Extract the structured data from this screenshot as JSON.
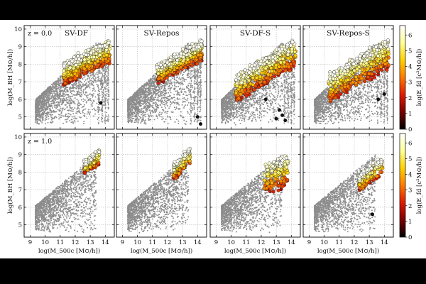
{
  "figure": {
    "background_band_color": "#000000",
    "panel_background": "#ffffff",
    "scatter_color": "#8c8c8c",
    "colormap": [
      "#000000",
      "#7a0000",
      "#e01b00",
      "#ff7a00",
      "#ffd200",
      "#ffff9a",
      "#ffffff"
    ]
  },
  "chart_data": [
    {
      "type": "scatter",
      "title": "SV-DF",
      "row": 0,
      "col": 0,
      "z_label": "z = 0.0",
      "xlim": [
        8.6,
        14.6
      ],
      "ylim": [
        4.3,
        10.2
      ],
      "xticks": [
        "9",
        "10",
        "11",
        "12",
        "13",
        "14"
      ],
      "yticks": [
        "5",
        "6",
        "7",
        "8",
        "9",
        "10"
      ],
      "ylabel": "log(M_BH [M⊙/h])",
      "xlabel": "",
      "grid": true,
      "colored": {
        "x_range": [
          11.2,
          14.3
        ],
        "y_top_at_left": 8.0,
        "y_top_at_right": 9.3,
        "spread": 1.2,
        "color_range": [
          0,
          6.5
        ]
      },
      "outliers": [
        [
          13.7,
          5.8
        ]
      ]
    },
    {
      "type": "scatter",
      "title": "SV-Repos",
      "row": 0,
      "col": 1,
      "z_label": "",
      "xlim": [
        8.6,
        14.6
      ],
      "ylim": [
        4.3,
        10.2
      ],
      "xticks": [
        "9",
        "10",
        "11",
        "12",
        "13",
        "14"
      ],
      "yticks": [
        "5",
        "6",
        "7",
        "8",
        "9",
        "10"
      ],
      "ylabel": "",
      "xlabel": "",
      "grid": true,
      "colored": {
        "x_range": [
          11.3,
          14.3
        ],
        "y_top_at_left": 7.9,
        "y_top_at_right": 9.3,
        "spread": 1.0,
        "color_range": [
          0,
          6.5
        ]
      },
      "outliers": [
        [
          14.0,
          5.0
        ],
        [
          14.2,
          4.6
        ]
      ]
    },
    {
      "type": "scatter",
      "title": "SV-DF-S",
      "row": 0,
      "col": 2,
      "z_label": "",
      "xlim": [
        8.6,
        14.6
      ],
      "ylim": [
        4.3,
        10.2
      ],
      "xticks": [
        "9",
        "10",
        "11",
        "12",
        "13",
        "14"
      ],
      "yticks": [
        "5",
        "6",
        "7",
        "8",
        "9",
        "10"
      ],
      "ylabel": "",
      "xlabel": "",
      "grid": true,
      "colored": {
        "x_range": [
          10.3,
          14.3
        ],
        "y_top_at_left": 7.3,
        "y_top_at_right": 9.4,
        "spread": 1.5,
        "color_range": [
          0,
          6.5
        ]
      },
      "outliers": [
        [
          12.3,
          6.0
        ],
        [
          13.2,
          5.4
        ],
        [
          13.4,
          5.1
        ],
        [
          13.6,
          4.8
        ],
        [
          13.0,
          4.9
        ]
      ]
    },
    {
      "type": "scatter",
      "title": "SV-Repos-S",
      "row": 0,
      "col": 3,
      "z_label": "",
      "xlim": [
        8.6,
        14.6
      ],
      "ylim": [
        4.3,
        10.2
      ],
      "xticks": [
        "9",
        "10",
        "11",
        "12",
        "13",
        "14"
      ],
      "yticks": [
        "5",
        "6",
        "7",
        "8",
        "9",
        "10"
      ],
      "ylabel": "",
      "xlabel": "",
      "grid": true,
      "colored": {
        "x_range": [
          10.3,
          14.3
        ],
        "y_top_at_left": 7.4,
        "y_top_at_right": 9.4,
        "spread": 1.6,
        "color_range": [
          0,
          6.5
        ]
      },
      "outliers": [
        [
          13.6,
          6.0
        ],
        [
          14.0,
          6.3
        ]
      ]
    },
    {
      "type": "scatter",
      "title": "",
      "row": 1,
      "col": 0,
      "z_label": "z = 1.0",
      "xlim": [
        8.6,
        14.6
      ],
      "ylim": [
        4.3,
        10.2
      ],
      "xticks": [
        "9",
        "10",
        "11",
        "12",
        "13",
        "14"
      ],
      "yticks": [
        "5",
        "6",
        "7",
        "8",
        "9",
        "10"
      ],
      "ylabel": "log(M_BH [M⊙/h])",
      "xlabel": "log(M_500c [M⊙/h])",
      "grid": true,
      "colored": {
        "x_range": [
          12.6,
          13.6
        ],
        "y_top_at_left": 8.6,
        "y_top_at_right": 9.2,
        "spread": 0.7,
        "color_range": [
          0,
          6.5
        ]
      },
      "outliers": []
    },
    {
      "type": "scatter",
      "title": "",
      "row": 1,
      "col": 1,
      "z_label": "",
      "xlim": [
        8.6,
        14.6
      ],
      "ylim": [
        4.3,
        10.2
      ],
      "xticks": [
        "9",
        "10",
        "11",
        "12",
        "13",
        "14"
      ],
      "yticks": [
        "5",
        "6",
        "7",
        "8",
        "9",
        "10"
      ],
      "ylabel": "",
      "xlabel": "log(M_500c [M⊙/h])",
      "grid": true,
      "colored": {
        "x_range": [
          12.4,
          13.5
        ],
        "y_top_at_left": 8.4,
        "y_top_at_right": 9.3,
        "spread": 0.8,
        "color_range": [
          0,
          6.5
        ]
      },
      "outliers": []
    },
    {
      "type": "scatter",
      "title": "",
      "row": 1,
      "col": 2,
      "z_label": "",
      "xlim": [
        8.6,
        14.6
      ],
      "ylim": [
        4.3,
        10.2
      ],
      "xticks": [
        "9",
        "10",
        "11",
        "12",
        "13",
        "14"
      ],
      "yticks": [
        "5",
        "6",
        "7",
        "8",
        "9",
        "10"
      ],
      "ylabel": "",
      "xlabel": "log(M_500c [M⊙/h])",
      "grid": true,
      "colored": {
        "x_range": [
          12.2,
          13.8
        ],
        "y_top_at_left": 8.3,
        "y_top_at_right": 8.9,
        "spread": 1.6,
        "color_range": [
          0,
          6.5
        ]
      },
      "outliers": []
    },
    {
      "type": "scatter",
      "title": "",
      "row": 1,
      "col": 3,
      "z_label": "",
      "xlim": [
        8.6,
        14.6
      ],
      "ylim": [
        4.3,
        10.2
      ],
      "xticks": [
        "9",
        "10",
        "11",
        "12",
        "13",
        "14"
      ],
      "yticks": [
        "5",
        "6",
        "7",
        "8",
        "9",
        "10"
      ],
      "ylabel": "",
      "xlabel": "log(M_500c [M⊙/h])",
      "grid": true,
      "colored": {
        "x_range": [
          12.3,
          13.9
        ],
        "y_top_at_left": 7.8,
        "y_top_at_right": 8.8,
        "spread": 0.9,
        "color_range": [
          0,
          6.5
        ]
      },
      "outliers": [
        [
          13.2,
          5.6
        ]
      ]
    }
  ],
  "colorbars": [
    {
      "row": 0,
      "label": "log(E_fd [c²M⊙/h])",
      "range": [
        0,
        6.6
      ],
      "ticks": [
        "0",
        "1",
        "2",
        "3",
        "4",
        "5",
        "6"
      ]
    },
    {
      "row": 1,
      "label": "log(E_fd [c²M⊙/h])",
      "range": [
        0,
        6.6
      ],
      "ticks": [
        "0",
        "1",
        "2",
        "3",
        "4",
        "5",
        "6"
      ]
    }
  ]
}
